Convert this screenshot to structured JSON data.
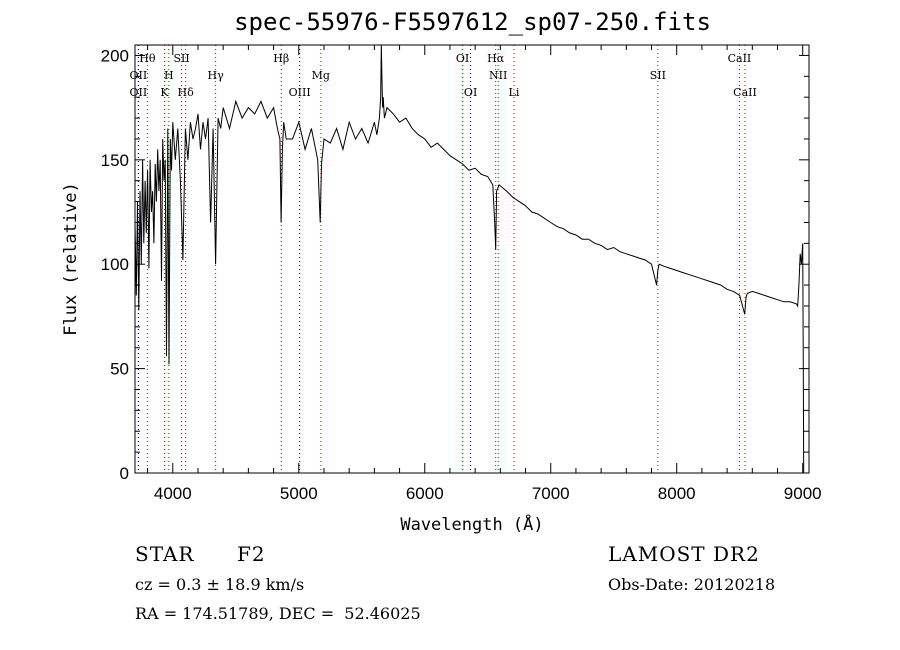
{
  "chart_data": {
    "type": "line",
    "title": "spec-55976-F5597612_sp07-250.fits",
    "xlabel": "Wavelength (Å)",
    "ylabel": "Flux (relative)",
    "xlim": [
      3700,
      9050
    ],
    "ylim": [
      0,
      205
    ],
    "xticks": [
      4000,
      5000,
      6000,
      7000,
      8000,
      9000
    ],
    "yticks": [
      0,
      50,
      100,
      150,
      200
    ],
    "grid": false,
    "series": [
      {
        "values_x": [
          3700,
          3710,
          3720,
          3730,
          3740,
          3750,
          3760,
          3770,
          3780,
          3790,
          3800,
          3810,
          3820,
          3830,
          3840,
          3850,
          3860,
          3870,
          3880,
          3890,
          3900,
          3910,
          3920,
          3930,
          3940,
          3950,
          3960,
          3970,
          3980,
          3990,
          4000,
          4020,
          4040,
          4060,
          4080,
          4100,
          4120,
          4140,
          4160,
          4180,
          4200,
          4220,
          4240,
          4260,
          4280,
          4300,
          4320,
          4340,
          4360,
          4380,
          4400,
          4450,
          4500,
          4550,
          4600,
          4650,
          4700,
          4750,
          4800,
          4830,
          4850,
          4860,
          4870,
          4880,
          4900,
          4950,
          5000,
          5050,
          5100,
          5150,
          5170,
          5180,
          5200,
          5250,
          5300,
          5350,
          5400,
          5450,
          5500,
          5550,
          5600,
          5620,
          5640,
          5650,
          5655,
          5660,
          5665,
          5670,
          5680,
          5700,
          5750,
          5800,
          5850,
          5900,
          5950,
          6000,
          6050,
          6100,
          6150,
          6200,
          6250,
          6300,
          6350,
          6400,
          6450,
          6500,
          6540,
          6555,
          6563,
          6570,
          6590,
          6650,
          6700,
          6750,
          6800,
          6850,
          6900,
          6950,
          7000,
          7050,
          7100,
          7150,
          7200,
          7250,
          7300,
          7350,
          7400,
          7450,
          7500,
          7550,
          7600,
          7650,
          7700,
          7750,
          7800,
          7840,
          7850,
          7860,
          7900,
          7950,
          8000,
          8050,
          8100,
          8150,
          8200,
          8250,
          8300,
          8350,
          8400,
          8450,
          8500,
          8540,
          8550,
          8560,
          8600,
          8650,
          8700,
          8750,
          8800,
          8850,
          8900,
          8950,
          8960,
          8970,
          8980,
          8990,
          9000,
          9005,
          9008
        ],
        "values_y": [
          120,
          85,
          130,
          78,
          135,
          100,
          150,
          110,
          140,
          115,
          145,
          98,
          150,
          125,
          135,
          110,
          148,
          130,
          155,
          135,
          150,
          92,
          160,
          140,
          150,
          56,
          165,
          52,
          160,
          145,
          168,
          150,
          165,
          140,
          102,
          165,
          150,
          168,
          160,
          165,
          172,
          155,
          168,
          160,
          170,
          120,
          165,
          100,
          170,
          165,
          175,
          165,
          178,
          170,
          175,
          172,
          178,
          170,
          175,
          165,
          160,
          120,
          155,
          168,
          160,
          160,
          168,
          155,
          165,
          150,
          120,
          148,
          160,
          158,
          165,
          155,
          168,
          160,
          165,
          158,
          168,
          162,
          170,
          180,
          205,
          190,
          175,
          180,
          170,
          175,
          172,
          168,
          170,
          165,
          162,
          160,
          156,
          158,
          155,
          152,
          150,
          148,
          145,
          146,
          143,
          142,
          138,
          120,
          107,
          135,
          138,
          135,
          132,
          130,
          128,
          125,
          124,
          122,
          120,
          118,
          117,
          115,
          114,
          112,
          112,
          110,
          109,
          107,
          108,
          106,
          105,
          104,
          103,
          102,
          100,
          90,
          97,
          100,
          99,
          98,
          97,
          96,
          95,
          94,
          93,
          92,
          91,
          90,
          88,
          87,
          85,
          76,
          84,
          86,
          87,
          86,
          85,
          84,
          83,
          82,
          82,
          81,
          80,
          90,
          105,
          100,
          110,
          50,
          0
        ]
      }
    ],
    "line_markers": [
      {
        "label": "Hθ",
        "x": 3798,
        "row": 1,
        "color": "#cc0000"
      },
      {
        "label": "SII",
        "x": 4070,
        "row": 1,
        "color": "#cc0000"
      },
      {
        "label": "Hβ",
        "x": 4861,
        "row": 1,
        "color": "#cc0000"
      },
      {
        "label": "OI",
        "x": 6300,
        "row": 1,
        "color": "#cc0000"
      },
      {
        "label": "Hα",
        "x": 6563,
        "row": 1,
        "color": "#cc0000"
      },
      {
        "label": "CaII",
        "x": 8498,
        "row": 1,
        "color": "#cc0000"
      },
      {
        "label": "OII",
        "x": 3727,
        "row": 2,
        "color": "#000088"
      },
      {
        "label": "H",
        "x": 3968,
        "row": 2,
        "color": "#cc0000"
      },
      {
        "label": "Hγ",
        "x": 4340,
        "row": 2,
        "color": "#cc0000"
      },
      {
        "label": "Mg",
        "x": 5175,
        "row": 2,
        "color": "#cc0000"
      },
      {
        "label": "NII",
        "x": 6583,
        "row": 2,
        "color": "#cc0000"
      },
      {
        "label": "SII",
        "x": 7850,
        "row": 2,
        "color": "#cc0000"
      },
      {
        "label": "OII",
        "x": 3727,
        "row": 3,
        "color": "#000088"
      },
      {
        "label": "K",
        "x": 3934,
        "row": 3,
        "color": "#cc0000"
      },
      {
        "label": "Hδ",
        "x": 4102,
        "row": 3,
        "color": "#cc0000"
      },
      {
        "label": "OIII",
        "x": 5007,
        "row": 3,
        "color": "#000088"
      },
      {
        "label": "OI",
        "x": 6364,
        "row": 3,
        "color": "#000088"
      },
      {
        "label": "Li",
        "x": 6708,
        "row": 3,
        "color": "#cc0000"
      },
      {
        "label": "CaII",
        "x": 8542,
        "row": 3,
        "color": "#cc0000"
      }
    ]
  },
  "info": {
    "class_label": "STAR",
    "subclass": "F2",
    "release": "LAMOST DR2",
    "cz": "cz = 0.3 ± 18.9 km/s",
    "obs_date": "Obs-Date: 20120218",
    "coords": "RA = 174.51789, DEC =  52.46025"
  }
}
